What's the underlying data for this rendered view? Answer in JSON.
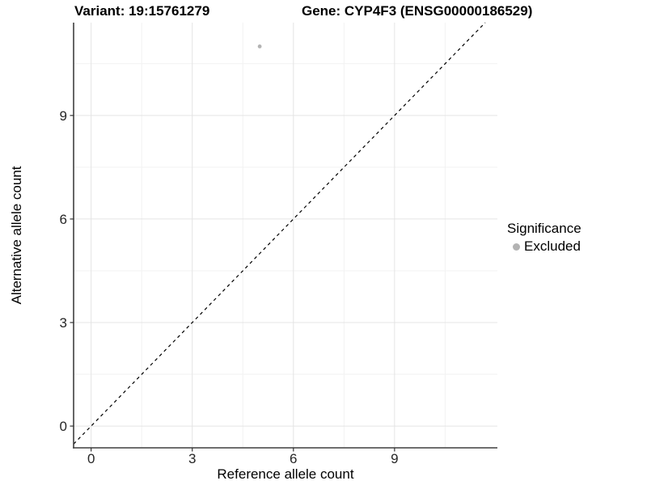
{
  "colors": {
    "grid_major": "#e4e4e4",
    "grid_minor": "#f2f2f2",
    "axis_line": "#3f3f3f",
    "tick_mark": "#333333",
    "tick_text": "#262626",
    "point": "#b3b3b3",
    "reference_line": "#000000"
  },
  "chart_data": {
    "type": "scatter",
    "title_left": "Variant: 19:15761279",
    "title_right": "Gene: CYP4F3 (ENSG00000186529)",
    "xlabel": "Reference allele count",
    "ylabel": "Alternative allele count",
    "xlim": [
      -0.52,
      12.05
    ],
    "ylim": [
      -0.63,
      11.69
    ],
    "x_ticks": [
      0,
      3,
      6,
      9
    ],
    "y_ticks": [
      0,
      3,
      6,
      9
    ],
    "x_minor_ticks": [
      1.5,
      4.5,
      7.5,
      10.5
    ],
    "y_minor_ticks": [
      1.5,
      4.5,
      7.5,
      10.5
    ],
    "grid": true,
    "legend_position": "right",
    "legend_title": "Significance",
    "series": [
      {
        "name": "Excluded",
        "color": "#b3b3b3",
        "marker": "circle",
        "points": [
          {
            "x": 5,
            "y": 11
          }
        ]
      }
    ],
    "reference_line": {
      "slope": 1,
      "intercept": 0,
      "style": "dashed",
      "color": "#000000"
    }
  }
}
